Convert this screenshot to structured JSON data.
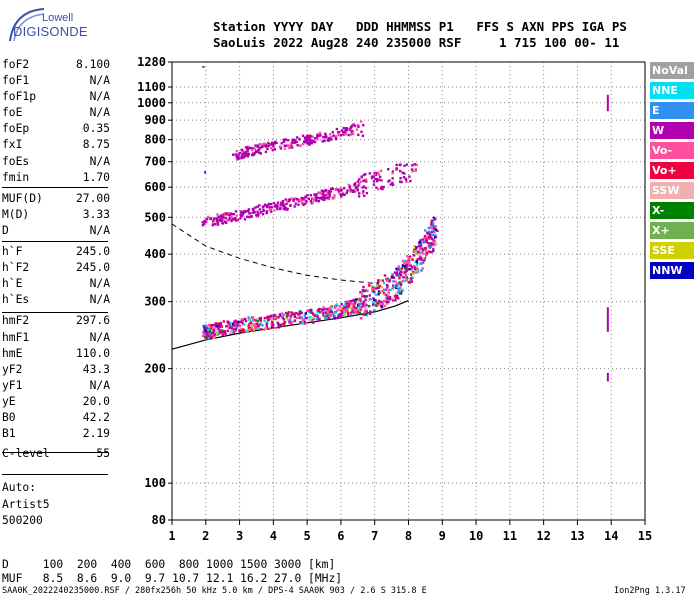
{
  "logo": {
    "top": "Lowell",
    "main": "DIGISONDE"
  },
  "header": {
    "line1": "Station YYYY DAY   DDD HHMMSS P1   FFS S AXN PPS IGA PS",
    "line2": "SaoLuis 2022 Aug28 240 235000 RSF     1 715 100 00- 11"
  },
  "params": {
    "group1": [
      {
        "name": "foF2",
        "value": "8.100"
      },
      {
        "name": "foF1",
        "value": "N/A"
      },
      {
        "name": "foF1p",
        "value": "N/A"
      },
      {
        "name": "foE",
        "value": "N/A"
      },
      {
        "name": "foEp",
        "value": "0.35"
      },
      {
        "name": "fxI",
        "value": "8.75"
      },
      {
        "name": "foEs",
        "value": "N/A"
      },
      {
        "name": "fmin",
        "value": "1.70"
      }
    ],
    "group2": [
      {
        "name": "MUF(D)",
        "value": "27.00"
      },
      {
        "name": "M(D)",
        "value": "3.33"
      },
      {
        "name": "D",
        "value": "N/A"
      }
    ],
    "group3": [
      {
        "name": "h`F",
        "value": "245.0"
      },
      {
        "name": "h`F2",
        "value": "245.0"
      },
      {
        "name": "h`E",
        "value": "N/A"
      },
      {
        "name": "h`Es",
        "value": "N/A"
      }
    ],
    "group4": [
      {
        "name": "hmF2",
        "value": "297.6"
      },
      {
        "name": "hmF1",
        "value": "N/A"
      },
      {
        "name": "hmE",
        "value": "110.0"
      },
      {
        "name": "yF2",
        "value": "43.3"
      },
      {
        "name": "yF1",
        "value": "N/A"
      },
      {
        "name": "yE",
        "value": "20.0"
      },
      {
        "name": "B0",
        "value": "42.2"
      },
      {
        "name": "B1",
        "value": "2.19"
      }
    ],
    "group5": [
      {
        "name": "C-level",
        "value": "55"
      }
    ]
  },
  "auto": {
    "line1": "Auto:",
    "line2": "Artist5",
    "line3": "500200"
  },
  "legend": [
    {
      "label": "NoVal",
      "color": "#a0a0a0"
    },
    {
      "label": "NNE",
      "color": "#00e0f0"
    },
    {
      "label": "E",
      "color": "#3090f0"
    },
    {
      "label": "W",
      "color": "#b000b0"
    },
    {
      "label": "Vo-",
      "color": "#ff50a0"
    },
    {
      "label": "Vo+",
      "color": "#f00040"
    },
    {
      "label": "SSW",
      "color": "#f0b0b0"
    },
    {
      "label": "X-",
      "color": "#008000"
    },
    {
      "label": "X+",
      "color": "#70b050"
    },
    {
      "label": "SSE",
      "color": "#d0d000"
    },
    {
      "label": "NNW",
      "color": "#0000c0"
    }
  ],
  "footer": {
    "d_row": "D     100  200  400  600  800 1000 1500 3000 [km]",
    "muf_row": "MUF   8.5  8.6  9.0  9.7 10.7 12.1 16.2 27.0 [MHz]",
    "file_info": "SAA0K_2022240235000.RSF / 280fx256h 50 kHz 5.0 km / DPS-4 SAA0K 903 / 2.6 S 315.8 E",
    "version": "Ion2Png 1.3.17"
  },
  "chart_data": {
    "type": "scatter",
    "title": "",
    "xlabel": "",
    "ylabel": "",
    "xlim": [
      1,
      15
    ],
    "ylim": [
      80,
      1280
    ],
    "yscale": "log",
    "x_ticks": [
      "1",
      "2",
      "3",
      "4",
      "5",
      "6",
      "7",
      "8",
      "9",
      "10",
      "11",
      "12",
      "13",
      "14",
      "15"
    ],
    "y_ticks": [
      "80",
      "100",
      "200",
      "300",
      "400",
      "500",
      "600",
      "700",
      "800",
      "900",
      "1000",
      "1100",
      "1280"
    ],
    "grid": true,
    "legend_position": "right",
    "series": [
      {
        "name": "W",
        "color": "#b000b0",
        "trace_o_first_hop": [
          [
            1.9,
            250
          ],
          [
            2.5,
            258
          ],
          [
            3.5,
            265
          ],
          [
            4.5,
            272
          ],
          [
            5.5,
            280
          ],
          [
            6.3,
            292
          ],
          [
            7.0,
            310
          ],
          [
            7.6,
            335
          ],
          [
            8.0,
            365
          ],
          [
            8.4,
            410
          ],
          [
            8.8,
            470
          ]
        ],
        "second_hop": [
          [
            1.9,
            488
          ],
          [
            3.0,
            510
          ],
          [
            4.0,
            535
          ],
          [
            5.0,
            560
          ],
          [
            6.0,
            590
          ],
          [
            7.0,
            625
          ],
          [
            8.2,
            670
          ]
        ],
        "third_hop": [
          [
            2.8,
            730
          ],
          [
            3.5,
            760
          ],
          [
            4.5,
            790
          ],
          [
            5.5,
            820
          ],
          [
            6.6,
            870
          ]
        ],
        "vertical_14MHz": [
          [
            13.9,
            950
          ],
          [
            13.9,
            1050
          ],
          [
            13.9,
            190
          ],
          [
            13.9,
            290
          ]
        ]
      }
    ],
    "model_profile_solid": [
      [
        1,
        225
      ],
      [
        2,
        238
      ],
      [
        3,
        248
      ],
      [
        4,
        256
      ],
      [
        5,
        264
      ],
      [
        6,
        272
      ],
      [
        7,
        282
      ],
      [
        7.6,
        292
      ],
      [
        8.0,
        302
      ]
    ],
    "model_trace_dashed": [
      [
        1,
        480
      ],
      [
        2,
        420
      ],
      [
        3,
        390
      ],
      [
        4,
        368
      ],
      [
        5,
        352
      ],
      [
        6,
        342
      ],
      [
        7,
        335
      ]
    ]
  }
}
